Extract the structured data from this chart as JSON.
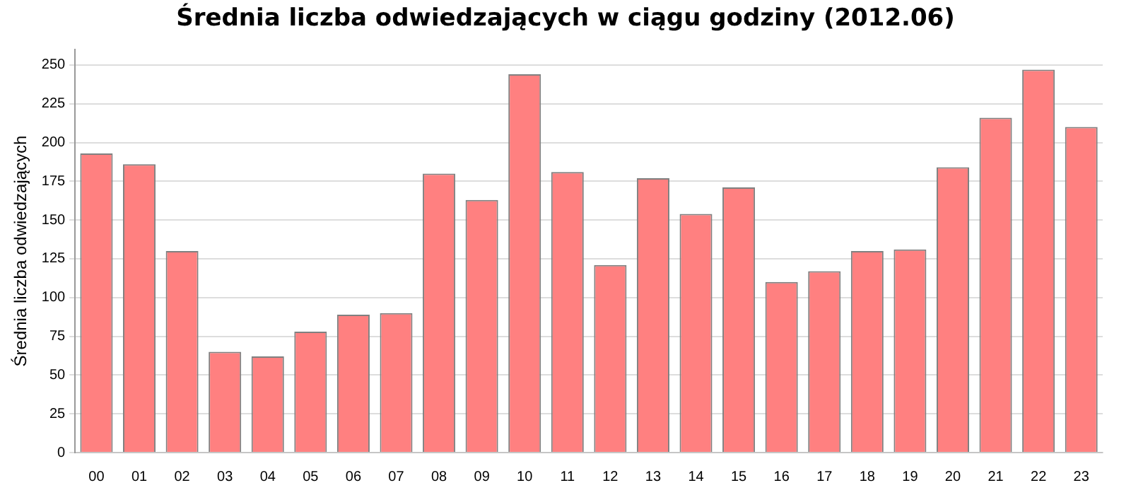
{
  "chart_data": {
    "type": "bar",
    "title": "Średnia liczba odwiedzających w ciągu godziny (2012.06)",
    "ylabel": "Średnia liczba odwiedzających",
    "categories": [
      "00",
      "01",
      "02",
      "03",
      "04",
      "05",
      "06",
      "07",
      "08",
      "09",
      "10",
      "11",
      "12",
      "13",
      "14",
      "15",
      "16",
      "17",
      "18",
      "19",
      "20",
      "21",
      "22",
      "23"
    ],
    "values": [
      193,
      186,
      130,
      65,
      62,
      78,
      89,
      90,
      180,
      163,
      244,
      181,
      121,
      177,
      154,
      171,
      110,
      117,
      130,
      131,
      184,
      216,
      247,
      210
    ],
    "color": "#ff8080",
    "ylim": [
      0,
      260
    ],
    "yticks": [
      0,
      25,
      50,
      75,
      100,
      125,
      150,
      175,
      200,
      225,
      250
    ],
    "grid": "y"
  }
}
